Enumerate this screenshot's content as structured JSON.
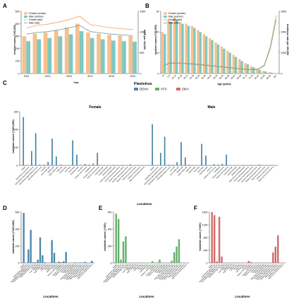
{
  "colors": {
    "female": "#f7c08f",
    "male": "#7fc8bf",
    "female_line": "#f0a060",
    "male_line": "#5aa99e",
    "total_line": "#bcbcbc",
    "dengue": "#4a86a8",
    "yellow_fever": "#62b06a",
    "zika": "#d46a6a"
  },
  "panels": {
    "A": {
      "letter": "A"
    },
    "B": {
      "letter": "B"
    },
    "C": {
      "letter": "C",
      "female_title": "Female",
      "male_title": "Male",
      "xlabel": "Locations",
      "ylabel": "Incident cases (*100,000)"
    },
    "D": {
      "letter": "D",
      "xlabel": "Locations",
      "ylabel": "Incident cases (*100,000)"
    },
    "E": {
      "letter": "E",
      "xlabel": "Locations",
      "ylabel": "Incident cases (*100)"
    },
    "F": {
      "letter": "F",
      "xlabel": "Locations",
      "ylabel": "Incident cases (*100)"
    }
  },
  "chart_data": [
    {
      "panel": "A",
      "type": "bar",
      "xlabel": "Year",
      "ylabel_left": "Incident cases (*100,000)",
      "ylabel_right": "ASIR per 100,000",
      "legend": [
        "Female (number)",
        "Male (number)",
        "Female (rate)",
        "Male (rate)"
      ],
      "categories": [
        "2011",
        "2012",
        "2013",
        "2014",
        "2015",
        "2016",
        "2017",
        "2018",
        "2019",
        "2020",
        "2021"
      ],
      "x_ticks": [
        "2011",
        "2013",
        "2015",
        "2017",
        "2019",
        "2021"
      ],
      "ylim_left": [
        0,
        500
      ],
      "y_ticks_left": [
        0,
        100,
        200,
        300,
        400,
        500
      ],
      "ylim_right": [
        0,
        1500
      ],
      "y_ticks_right": [
        0,
        500,
        1000,
        1500
      ],
      "series": [
        {
          "name": "Female (number)",
          "values": [
            300,
            320,
            330,
            350,
            370,
            400,
            330,
            320,
            310,
            305,
            300
          ]
        },
        {
          "name": "Male (number)",
          "values": [
            260,
            275,
            285,
            300,
            315,
            340,
            285,
            275,
            265,
            260,
            255
          ]
        },
        {
          "name": "Female (rate)",
          "values": [
            1100,
            1160,
            1190,
            1240,
            1300,
            1380,
            1180,
            1140,
            1100,
            1080,
            1060
          ]
        },
        {
          "name": "Male (rate)",
          "values": [
            950,
            990,
            1010,
            1050,
            1100,
            1160,
            1010,
            980,
            950,
            930,
            910
          ]
        }
      ]
    },
    {
      "panel": "B",
      "type": "bar",
      "xlabel": "Age (years)",
      "ylabel_left": "Incident cases (*100,000)",
      "ylabel_right": "Incidence rate per 100,000",
      "legend": [
        "Female (number)",
        "Male (number)",
        "Female (rate)",
        "Male (rate)"
      ],
      "categories": [
        "<5",
        "5-9",
        "10-14",
        "15-19",
        "20-24",
        "25-29",
        "30-34",
        "35-39",
        "40-44",
        "45-49",
        "50-54",
        "55-59",
        "60-64",
        "65-69",
        "70-74",
        "75-79",
        "80-84",
        "85-89",
        "90-94",
        "95+"
      ],
      "ylim_left": [
        0,
        30
      ],
      "y_ticks_left": [
        0,
        10,
        20,
        30
      ],
      "ylim_right": [
        0,
        3000
      ],
      "y_ticks_right": [
        0,
        1000,
        2000,
        3000
      ],
      "series": [
        {
          "name": "Female (number)",
          "values": [
            20,
            26,
            27,
            25,
            24,
            23,
            21,
            19,
            17,
            15,
            13,
            11,
            9,
            7,
            5,
            3.5,
            2.2,
            1.2,
            0.6,
            0.2
          ]
        },
        {
          "name": "Male (number)",
          "values": [
            19,
            25,
            26,
            24,
            23,
            22,
            20,
            18,
            16,
            14,
            12,
            10,
            8,
            6,
            4.5,
            3,
            1.8,
            1,
            0.5,
            0.2
          ]
        },
        {
          "name": "Female (rate)",
          "values": [
            380,
            520,
            520,
            500,
            490,
            470,
            450,
            420,
            390,
            360,
            330,
            300,
            270,
            240,
            210,
            200,
            230,
            420,
            1300,
            2800
          ]
        },
        {
          "name": "Male (rate)",
          "values": [
            360,
            500,
            500,
            480,
            470,
            450,
            430,
            400,
            370,
            340,
            310,
            280,
            250,
            220,
            190,
            180,
            210,
            380,
            1200,
            2600
          ]
        }
      ]
    },
    {
      "panel": "C",
      "type": "bar",
      "legend_title": "Flavivirus",
      "legend": [
        "DENV",
        "YFV",
        "ZIKV"
      ],
      "ylim": [
        0,
        300
      ],
      "y_ticks": [
        0,
        100,
        200,
        300
      ],
      "groups": [
        {
          "title": "Female",
          "categories": [
            "Global",
            "World Bank Low Income",
            "World Bank Lower Middle Income",
            "World Bank Upper Middle Income",
            "World Bank High Income",
            "Low SDI",
            "Low-middle SDI",
            "Middle SDI",
            "High-middle SDI",
            "High SDI",
            "Central Asia",
            "East Asia",
            "South Asia",
            "Southeast Asia",
            "Oceania",
            "Andean Latin America",
            "Caribbean",
            "Central Latin America",
            "Tropical Latin America",
            "Central Europe",
            "Eastern Europe",
            "Western Europe",
            "North Africa and Middle East",
            "Central Sub-Saharan Africa",
            "Eastern Sub-Saharan Africa",
            "Southern Sub-Saharan Africa",
            "Western Sub-Saharan Africa",
            "High-income Asia Pacific",
            "Southern Latin America",
            "High-income North America"
          ],
          "series": [
            {
              "name": "DENV",
              "values": [
                270,
                2,
                80,
                180,
                5,
                4,
                20,
                150,
                50,
                5,
                0.5,
                1,
                140,
                60,
                2,
                8,
                4,
                10,
                70,
                0.2,
                0.2,
                0.5,
                3,
                2,
                3,
                1,
                6,
                1,
                0.5,
                2
              ]
            },
            {
              "name": "YFV",
              "values": [
                0.5,
                0.1,
                0.2,
                0.1,
                0,
                0.2,
                0.1,
                0.1,
                0,
                0,
                0,
                0,
                0,
                0,
                0,
                0.1,
                0,
                0,
                0.1,
                0,
                0,
                0,
                0,
                0.2,
                0.2,
                0,
                0.3,
                0,
                0,
                0
              ]
            },
            {
              "name": "ZIKV",
              "values": [
                1,
                0,
                0.2,
                0.5,
                0.2,
                0,
                0.1,
                0.5,
                0.2,
                0.2,
                0,
                0,
                0,
                0,
                0,
                0.2,
                0.3,
                0.5,
                0.8,
                0,
                0,
                0,
                0,
                0,
                0,
                0,
                0,
                0,
                0,
                0.1
              ]
            }
          ]
        },
        {
          "title": "Male",
          "categories": [
            "Global",
            "World Bank Low Income",
            "World Bank Lower Middle Income",
            "World Bank Upper Middle Income",
            "World Bank High Income",
            "Low SDI",
            "Low-middle SDI",
            "Middle SDI",
            "High-middle SDI",
            "High SDI",
            "Central Asia",
            "East Asia",
            "South Asia",
            "Southeast Asia",
            "Oceania",
            "Andean Latin America",
            "Caribbean",
            "Central Latin America",
            "Tropical Latin America",
            "Central Europe",
            "Eastern Europe",
            "Western Europe",
            "North Africa and Middle East",
            "Central Sub-Saharan Africa",
            "Eastern Sub-Saharan Africa",
            "Southern Sub-Saharan Africa",
            "Western Sub-Saharan Africa",
            "High-income Asia Pacific",
            "Southern Latin America",
            "High-income North America"
          ],
          "series": [
            {
              "name": "DENV",
              "values": [
                230,
                2,
                70,
                160,
                4,
                4,
                18,
                130,
                45,
                4,
                0.5,
                1,
                120,
                55,
                2,
                7,
                4,
                9,
                60,
                0.2,
                0.2,
                0.5,
                3,
                2,
                3,
                1,
                5,
                1,
                0.5,
                2
              ]
            },
            {
              "name": "YFV",
              "values": [
                0.5,
                0.1,
                0.2,
                0.1,
                0,
                0.2,
                0.1,
                0.1,
                0,
                0,
                0,
                0,
                0,
                0,
                0,
                0.1,
                0,
                0,
                0.1,
                0,
                0,
                0,
                0,
                0.2,
                0.2,
                0,
                0.3,
                0,
                0,
                0
              ]
            },
            {
              "name": "ZIKV",
              "values": [
                1,
                0,
                0.2,
                0.5,
                0.2,
                0,
                0.1,
                0.5,
                0.2,
                0.2,
                0,
                0,
                0,
                0,
                0,
                0.2,
                0.3,
                0.5,
                0.8,
                0,
                0,
                0,
                0,
                0,
                0,
                0,
                0,
                0,
                0,
                0.1
              ]
            }
          ]
        }
      ]
    },
    {
      "panel": "D",
      "type": "bar",
      "ylim": [
        0,
        600
      ],
      "y_ticks": [
        0,
        200,
        400,
        600
      ],
      "categories": [
        "Global",
        "World Bank Low Income",
        "World Bank Lower Middle Income",
        "World Bank Upper Middle Income",
        "World Bank High Income",
        "Low SDI",
        "Low-middle SDI",
        "Middle SDI",
        "High-middle SDI",
        "High SDI",
        "Central Asia",
        "East Asia",
        "South Asia",
        "Southeast Asia",
        "Oceania",
        "Andean Latin America",
        "Caribbean",
        "Central Latin America",
        "Tropical Latin America",
        "Central Europe",
        "Eastern Europe",
        "Western Europe",
        "North Africa and Middle East",
        "Central Sub-Saharan Africa",
        "Eastern Sub-Saharan Africa",
        "Southern Sub-Saharan Africa",
        "Western Sub-Saharan Africa",
        "High-income Asia Pacific",
        "Southern Latin America",
        "High-income North America"
      ],
      "series": [
        {
          "name": "DENV",
          "values": [
            590,
            4,
            160,
            390,
            8,
            8,
            38,
            300,
            90,
            8,
            1,
            2,
            270,
            120,
            4,
            16,
            8,
            20,
            130,
            0.5,
            0.5,
            1,
            6,
            4,
            6,
            2,
            12,
            2,
            1,
            25
          ]
        }
      ]
    },
    {
      "panel": "E",
      "type": "bar",
      "ylim": [
        0,
        900
      ],
      "y_ticks": [
        0,
        300,
        600,
        900
      ],
      "categories": [
        "Global",
        "World Bank Low Income",
        "World Bank Lower Middle Income",
        "World Bank Upper Middle Income",
        "World Bank High Income",
        "Low SDI",
        "Low-middle SDI",
        "Middle SDI",
        "High-middle SDI",
        "High SDI",
        "Central Asia",
        "East Asia",
        "South Asia",
        "Southeast Asia",
        "Oceania",
        "Andean Latin America",
        "Caribbean",
        "Central Latin America",
        "Tropical Latin America",
        "Central Europe",
        "Eastern Europe",
        "Western Europe",
        "North Africa and Middle East",
        "Central Sub-Saharan Africa",
        "Eastern Sub-Saharan Africa",
        "Southern Sub-Saharan Africa",
        "Western Sub-Saharan Africa",
        "High-income Asia Pacific",
        "Southern Latin America",
        "High-income North America"
      ],
      "series": [
        {
          "name": "YFV",
          "values": [
            870,
            780,
            60,
            380,
            470,
            0,
            0,
            0,
            0,
            0,
            0,
            0,
            0,
            5,
            0,
            30,
            5,
            10,
            60,
            0,
            0,
            0,
            0,
            40,
            190,
            290,
            420,
            0,
            0,
            0
          ]
        }
      ]
    },
    {
      "panel": "F",
      "type": "bar",
      "ylim": [
        0,
        1600
      ],
      "y_ticks": [
        0,
        400,
        800,
        1200,
        1600
      ],
      "categories": [
        "Global",
        "World Bank Low Income",
        "World Bank Lower Middle Income",
        "World Bank Upper Middle Income",
        "World Bank High Income",
        "Low SDI",
        "Low-middle SDI",
        "Middle SDI",
        "High-middle SDI",
        "High SDI",
        "Central Asia",
        "East Asia",
        "South Asia",
        "Southeast Asia",
        "Oceania",
        "Andean Latin America",
        "Caribbean",
        "Central Latin America",
        "Tropical Latin America",
        "Central Europe",
        "Eastern Europe",
        "Western Europe",
        "North Africa and Middle East",
        "Central Sub-Saharan Africa",
        "Eastern Sub-Saharan Africa",
        "Southern Sub-Saharan Africa",
        "Western Sub-Saharan Africa",
        "High-income Asia Pacific",
        "Southern Latin America",
        "High-income North America"
      ],
      "series": [
        {
          "name": "ZIKV",
          "values": [
            1600,
            1500,
            50,
            1450,
            200,
            0,
            0,
            0,
            0,
            0,
            0,
            0,
            0,
            0,
            0,
            60,
            30,
            0,
            0,
            0,
            0,
            0,
            0,
            0,
            0,
            330,
            510,
            870,
            0,
            0
          ]
        }
      ]
    }
  ]
}
